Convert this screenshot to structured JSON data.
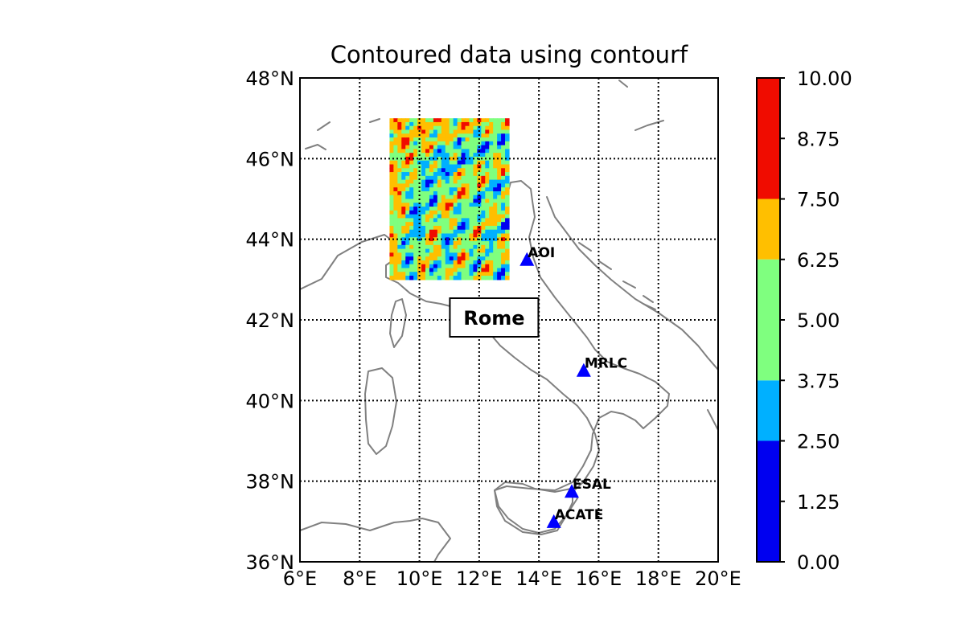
{
  "chart_data": {
    "type": "contour_map",
    "title": "Contoured data using contourf",
    "xlim": [
      6,
      20
    ],
    "ylim": [
      36,
      48
    ],
    "x_ticks": [
      6,
      8,
      10,
      12,
      14,
      16,
      18,
      20
    ],
    "y_ticks": [
      36,
      38,
      40,
      42,
      44,
      46,
      48
    ],
    "x_tick_labels": [
      "6°E",
      "8°E",
      "10°E",
      "12°E",
      "14°E",
      "16°E",
      "18°E",
      "20°E"
    ],
    "y_tick_labels": [
      "36°N",
      "38°N",
      "40°N",
      "42°N",
      "44°N",
      "46°N",
      "48°N"
    ],
    "grid": true,
    "contour_extent": {
      "lon": [
        9,
        13
      ],
      "lat": [
        43,
        47
      ]
    },
    "colorbar": {
      "levels": [
        0.0,
        1.25,
        2.5,
        3.75,
        5.0,
        6.25,
        7.5,
        8.75,
        10.0
      ],
      "tick_labels": [
        "0.00",
        "1.25",
        "2.50",
        "3.75",
        "5.00",
        "6.25",
        "7.50",
        "8.75",
        "10.00"
      ],
      "colors": [
        "#0000f0",
        "#00b0ff",
        "#7fff7f",
        "#ffbf00",
        "#f00c00"
      ],
      "placement": "right"
    },
    "stations": [
      {
        "name": "AOI",
        "lon": 13.6,
        "lat": 43.5
      },
      {
        "name": "MRLC",
        "lon": 15.5,
        "lat": 40.75
      },
      {
        "name": "ESAL",
        "lon": 15.1,
        "lat": 37.75
      },
      {
        "name": "ACATE",
        "lon": 14.5,
        "lat": 37.0
      }
    ],
    "station_color": "#0000ff",
    "annotations": [
      {
        "text": "Rome",
        "lon": 12.5,
        "lat": 42.0
      }
    ]
  }
}
